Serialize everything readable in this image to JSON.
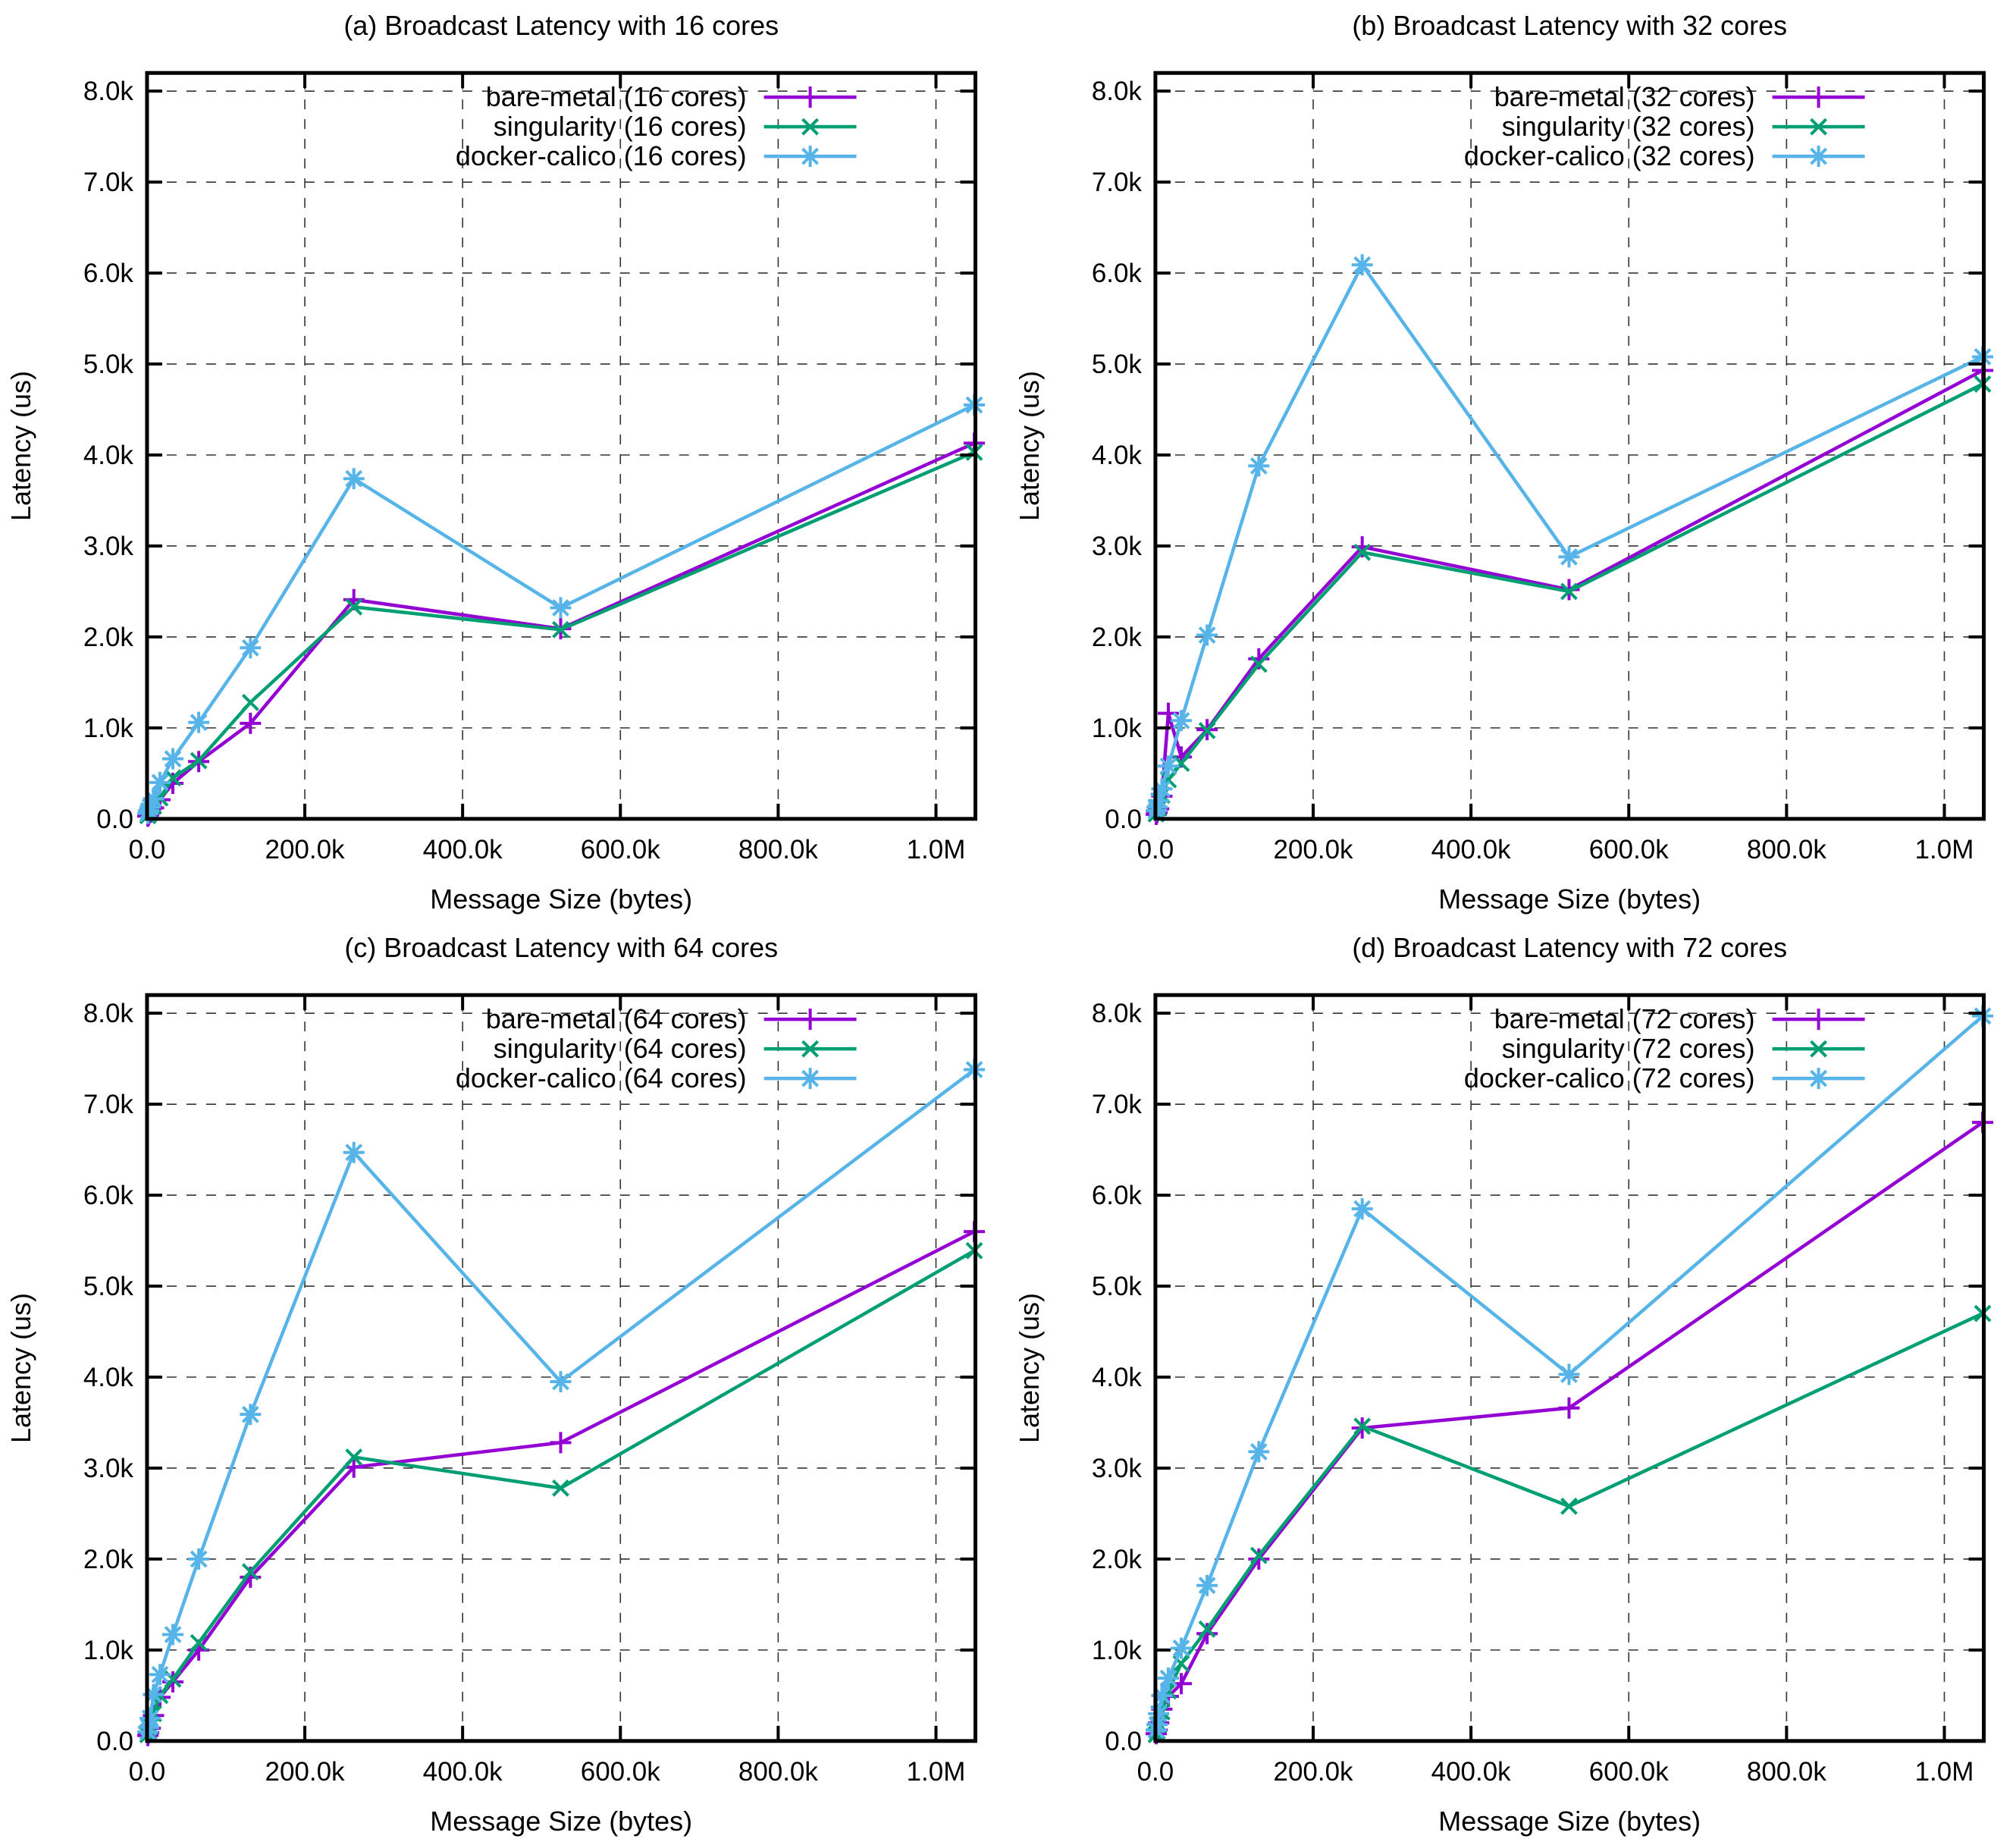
{
  "page": {
    "background": "#ffffff"
  },
  "chart_data": [
    {
      "id": "a",
      "type": "line",
      "title": "(a) Broadcast Latency with 16 cores",
      "xlabel": "Message Size (bytes)",
      "ylabel": "Latency (us)",
      "xlim": [
        0,
        1050000
      ],
      "ylim": [
        0,
        8200
      ],
      "grid": true,
      "legend_position": "top-center-inside",
      "x_ticks": [
        {
          "value": 0,
          "label": "0.0"
        },
        {
          "value": 200000,
          "label": "200.0k"
        },
        {
          "value": 400000,
          "label": "400.0k"
        },
        {
          "value": 600000,
          "label": "600.0k"
        },
        {
          "value": 800000,
          "label": "800.0k"
        },
        {
          "value": 1000000,
          "label": "1.0M"
        }
      ],
      "y_ticks": [
        {
          "value": 0,
          "label": "0.0"
        },
        {
          "value": 1000,
          "label": "1.0k"
        },
        {
          "value": 2000,
          "label": "2.0k"
        },
        {
          "value": 3000,
          "label": "3.0k"
        },
        {
          "value": 4000,
          "label": "4.0k"
        },
        {
          "value": 5000,
          "label": "5.0k"
        },
        {
          "value": 6000,
          "label": "6.0k"
        },
        {
          "value": 7000,
          "label": "7.0k"
        },
        {
          "value": 8000,
          "label": "8.0k"
        }
      ],
      "x": [
        1024,
        2048,
        4096,
        8192,
        16384,
        32768,
        65536,
        131072,
        262144,
        524288,
        1048576
      ],
      "series": [
        {
          "name": "bare-metal (16 cores)",
          "color": "#9400d3",
          "marker": "plus",
          "values": [
            30,
            45,
            70,
            120,
            210,
            390,
            630,
            1050,
            2410,
            2090,
            4130
          ]
        },
        {
          "name": "singularity (16 cores)",
          "color": "#009e73",
          "marker": "cross",
          "values": [
            35,
            50,
            80,
            140,
            230,
            450,
            640,
            1280,
            2330,
            2080,
            4030
          ]
        },
        {
          "name": "docker-calico (16 cores)",
          "color": "#56b4e9",
          "marker": "asterisk",
          "values": [
            60,
            90,
            130,
            220,
            400,
            660,
            1060,
            1880,
            3740,
            2320,
            4550
          ]
        }
      ]
    },
    {
      "id": "b",
      "type": "line",
      "title": "(b) Broadcast Latency with 32 cores",
      "xlabel": "Message Size (bytes)",
      "ylabel": "Latency (us)",
      "xlim": [
        0,
        1050000
      ],
      "ylim": [
        0,
        8200
      ],
      "grid": true,
      "legend_position": "top-center-inside",
      "x_ticks": [
        {
          "value": 0,
          "label": "0.0"
        },
        {
          "value": 200000,
          "label": "200.0k"
        },
        {
          "value": 400000,
          "label": "400.0k"
        },
        {
          "value": 600000,
          "label": "600.0k"
        },
        {
          "value": 800000,
          "label": "800.0k"
        },
        {
          "value": 1000000,
          "label": "1.0M"
        }
      ],
      "y_ticks": [
        {
          "value": 0,
          "label": "0.0"
        },
        {
          "value": 1000,
          "label": "1.0k"
        },
        {
          "value": 2000,
          "label": "2.0k"
        },
        {
          "value": 3000,
          "label": "3.0k"
        },
        {
          "value": 4000,
          "label": "4.0k"
        },
        {
          "value": 5000,
          "label": "5.0k"
        },
        {
          "value": 6000,
          "label": "6.0k"
        },
        {
          "value": 7000,
          "label": "7.0k"
        },
        {
          "value": 8000,
          "label": "8.0k"
        }
      ],
      "x": [
        1024,
        2048,
        4096,
        8192,
        16384,
        32768,
        65536,
        131072,
        262144,
        524288,
        1048576
      ],
      "series": [
        {
          "name": "bare-metal (32 cores)",
          "color": "#9400d3",
          "marker": "plus",
          "values": [
            50,
            70,
            110,
            250,
            1160,
            680,
            980,
            1760,
            2990,
            2520,
            4930
          ]
        },
        {
          "name": "singularity (32 cores)",
          "color": "#009e73",
          "marker": "cross",
          "values": [
            55,
            80,
            120,
            260,
            430,
            610,
            970,
            1700,
            2930,
            2500,
            4780
          ]
        },
        {
          "name": "docker-calico (32 cores)",
          "color": "#56b4e9",
          "marker": "asterisk",
          "values": [
            90,
            130,
            200,
            330,
            580,
            1080,
            2020,
            3880,
            6090,
            2880,
            5080
          ]
        }
      ]
    },
    {
      "id": "c",
      "type": "line",
      "title": "(c) Broadcast Latency with 64 cores",
      "xlabel": "Message Size (bytes)",
      "ylabel": "Latency (us)",
      "xlim": [
        0,
        1050000
      ],
      "ylim": [
        0,
        8200
      ],
      "grid": true,
      "legend_position": "top-center-inside",
      "x_ticks": [
        {
          "value": 0,
          "label": "0.0"
        },
        {
          "value": 200000,
          "label": "200.0k"
        },
        {
          "value": 400000,
          "label": "400.0k"
        },
        {
          "value": 600000,
          "label": "600.0k"
        },
        {
          "value": 800000,
          "label": "800.0k"
        },
        {
          "value": 1000000,
          "label": "1.0M"
        }
      ],
      "y_ticks": [
        {
          "value": 0,
          "label": "0.0"
        },
        {
          "value": 1000,
          "label": "1.0k"
        },
        {
          "value": 2000,
          "label": "2.0k"
        },
        {
          "value": 3000,
          "label": "3.0k"
        },
        {
          "value": 4000,
          "label": "4.0k"
        },
        {
          "value": 5000,
          "label": "5.0k"
        },
        {
          "value": 6000,
          "label": "6.0k"
        },
        {
          "value": 7000,
          "label": "7.0k"
        },
        {
          "value": 8000,
          "label": "8.0k"
        }
      ],
      "x": [
        1024,
        2048,
        4096,
        8192,
        16384,
        32768,
        65536,
        131072,
        262144,
        524288,
        1048576
      ],
      "series": [
        {
          "name": "bare-metal (64 cores)",
          "color": "#9400d3",
          "marker": "plus",
          "values": [
            60,
            90,
            140,
            280,
            480,
            650,
            1000,
            1800,
            3010,
            3280,
            5600
          ]
        },
        {
          "name": "singularity (64 cores)",
          "color": "#009e73",
          "marker": "cross",
          "values": [
            70,
            100,
            160,
            300,
            500,
            680,
            1080,
            1860,
            3120,
            2780,
            5390
          ]
        },
        {
          "name": "docker-calico (64 cores)",
          "color": "#56b4e9",
          "marker": "asterisk",
          "values": [
            100,
            150,
            250,
            510,
            730,
            1170,
            2000,
            3590,
            6470,
            3950,
            7380
          ]
        }
      ]
    },
    {
      "id": "d",
      "type": "line",
      "title": "(d) Broadcast Latency with 72 cores",
      "xlabel": "Message Size (bytes)",
      "ylabel": "Latency (us)",
      "xlim": [
        0,
        1050000
      ],
      "ylim": [
        0,
        8200
      ],
      "grid": true,
      "legend_position": "top-center-inside",
      "x_ticks": [
        {
          "value": 0,
          "label": "0.0"
        },
        {
          "value": 200000,
          "label": "200.0k"
        },
        {
          "value": 400000,
          "label": "400.0k"
        },
        {
          "value": 600000,
          "label": "600.0k"
        },
        {
          "value": 800000,
          "label": "800.0k"
        },
        {
          "value": 1000000,
          "label": "1.0M"
        }
      ],
      "y_ticks": [
        {
          "value": 0,
          "label": "0.0"
        },
        {
          "value": 1000,
          "label": "1.0k"
        },
        {
          "value": 2000,
          "label": "2.0k"
        },
        {
          "value": 3000,
          "label": "3.0k"
        },
        {
          "value": 4000,
          "label": "4.0k"
        },
        {
          "value": 5000,
          "label": "5.0k"
        },
        {
          "value": 6000,
          "label": "6.0k"
        },
        {
          "value": 7000,
          "label": "7.0k"
        },
        {
          "value": 8000,
          "label": "8.0k"
        }
      ],
      "x": [
        1024,
        2048,
        4096,
        8192,
        16384,
        32768,
        65536,
        131072,
        262144,
        524288,
        1048576
      ],
      "series": [
        {
          "name": "bare-metal (72 cores)",
          "color": "#9400d3",
          "marker": "plus",
          "values": [
            80,
            120,
            200,
            350,
            490,
            630,
            1180,
            2000,
            3440,
            3660,
            6800
          ]
        },
        {
          "name": "singularity (72 cores)",
          "color": "#009e73",
          "marker": "cross",
          "values": [
            70,
            110,
            180,
            320,
            550,
            850,
            1230,
            2040,
            3460,
            2580,
            4700
          ]
        },
        {
          "name": "docker-calico (72 cores)",
          "color": "#56b4e9",
          "marker": "asterisk",
          "values": [
            120,
            180,
            300,
            500,
            690,
            1020,
            1710,
            3180,
            5850,
            4030,
            7970
          ]
        }
      ]
    }
  ]
}
